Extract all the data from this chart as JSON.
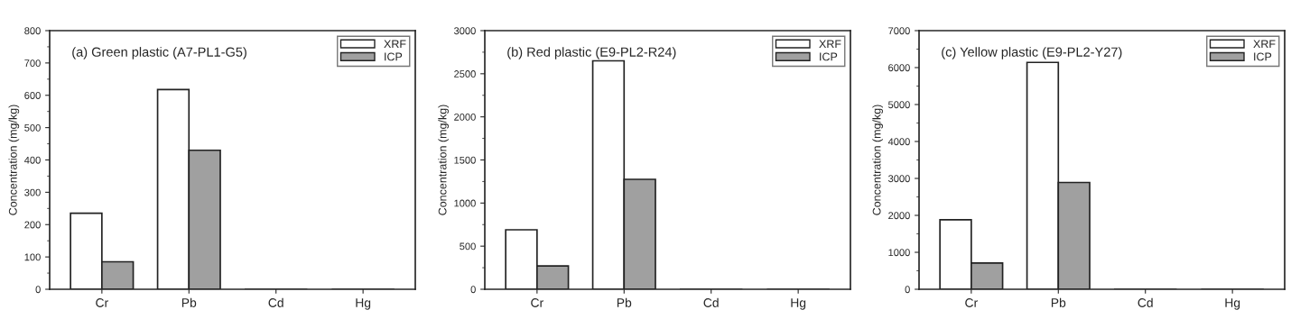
{
  "chart_data": [
    {
      "type": "bar",
      "title": "(a) Green plastic (A7-PL1-G5)",
      "ylabel": "Concentration (mg/kg)",
      "categories": [
        "Cr",
        "Pb",
        "Cd",
        "Hg"
      ],
      "series": [
        {
          "name": "XRF",
          "color": "#ffffff",
          "values": [
            235,
            618,
            0,
            0
          ]
        },
        {
          "name": "ICP",
          "color": "#a0a0a0",
          "values": [
            85,
            430,
            0,
            0
          ]
        }
      ],
      "ylim": [
        0,
        800
      ],
      "yticks": [
        0,
        100,
        200,
        300,
        400,
        500,
        600,
        700,
        800
      ],
      "legend": "top right",
      "grid": false
    },
    {
      "type": "bar",
      "title": "(b) Red plastic (E9-PL2-R24)",
      "ylabel": "Concentration (mg/kg)",
      "categories": [
        "Cr",
        "Pb",
        "Cd",
        "Hg"
      ],
      "series": [
        {
          "name": "XRF",
          "color": "#ffffff",
          "values": [
            690,
            2650,
            0,
            0
          ]
        },
        {
          "name": "ICP",
          "color": "#a0a0a0",
          "values": [
            270,
            1275,
            0,
            0
          ]
        }
      ],
      "ylim": [
        0,
        3000
      ],
      "yticks": [
        0,
        500,
        1000,
        1500,
        2000,
        2500,
        3000
      ],
      "legend": "top right",
      "grid": false
    },
    {
      "type": "bar",
      "title": "(c) Yellow plastic (E9-PL2-Y27)",
      "ylabel": "Concentration (mg/kg)",
      "categories": [
        "Cr",
        "Pb",
        "Cd",
        "Hg"
      ],
      "series": [
        {
          "name": "XRF",
          "color": "#ffffff",
          "values": [
            1880,
            6140,
            0,
            0
          ]
        },
        {
          "name": "ICP",
          "color": "#a0a0a0",
          "values": [
            710,
            2890,
            0,
            0
          ]
        }
      ],
      "ylim": [
        0,
        7000
      ],
      "yticks": [
        0,
        1000,
        2000,
        3000,
        4000,
        5000,
        6000,
        7000
      ],
      "legend": "top right",
      "grid": false
    }
  ]
}
